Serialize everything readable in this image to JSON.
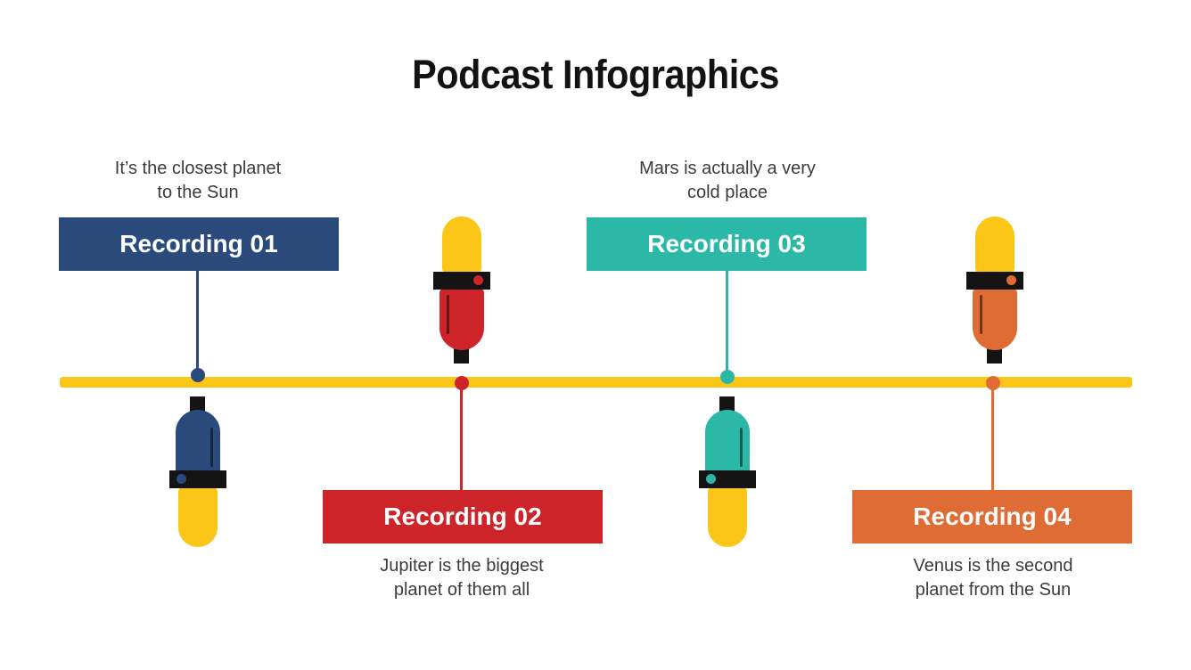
{
  "slide": {
    "title": "Podcast Infographics"
  },
  "recordings": [
    {
      "label": "Recording 01",
      "description_lines": [
        "It’s the closest planet",
        "to the Sun"
      ],
      "accent_color": "#2A4A7C",
      "side": "above-timeline"
    },
    {
      "label": "Recording 02",
      "description_lines": [
        "Jupiter is the biggest",
        "planet of them all"
      ],
      "accent_color": "#CC2429",
      "side": "below-timeline"
    },
    {
      "label": "Recording 03",
      "description_lines": [
        "Mars is actually a very",
        "cold place"
      ],
      "accent_color": "#2BB8A6",
      "side": "above-timeline"
    },
    {
      "label": "Recording 04",
      "description_lines": [
        "Venus is the second",
        "planet from the Sun"
      ],
      "accent_color": "#DE6C34",
      "side": "below-timeline"
    }
  ],
  "timeline": {
    "color": "#FBC617"
  },
  "microphone_colors": {
    "yellow": "#FBC617",
    "black": "#141414"
  }
}
